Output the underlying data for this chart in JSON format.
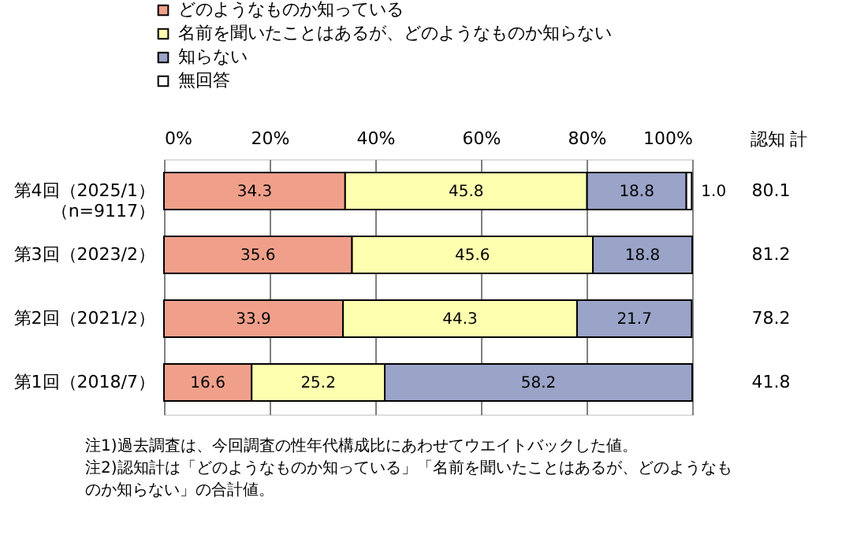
{
  "chart_data": {
    "type": "bar",
    "orientation": "horizontal",
    "stacked": true,
    "categories": [
      "第4回（2025/1）（n=9117）",
      "第3回（2023/2）",
      "第2回（2021/2）",
      "第1回（2018/7）"
    ],
    "series": [
      {
        "name": "どのようなものか知っている",
        "color": "#f0a08a",
        "values": [
          34.3,
          35.6,
          33.9,
          16.6
        ],
        "value_labels": [
          "34.3",
          "35.6",
          "33.9",
          "16.6"
        ]
      },
      {
        "name": "名前を聞いたことはあるが、どのようなものか知らない",
        "color": "#ffffb0",
        "values": [
          45.8,
          45.6,
          44.3,
          25.2
        ],
        "value_labels": [
          "45.8",
          "45.6",
          "44.3",
          "25.2"
        ]
      },
      {
        "name": "知らない",
        "color": "#9aa3c8",
        "values": [
          18.8,
          18.8,
          21.7,
          58.2
        ],
        "value_labels": [
          "18.8",
          "18.8",
          "21.7",
          "58.2"
        ]
      },
      {
        "name": "無回答",
        "color": "#ffffff",
        "values": [
          1.0,
          null,
          null,
          null
        ],
        "value_labels": [
          "1.0",
          null,
          null,
          null
        ]
      }
    ],
    "xlim": [
      0,
      100
    ],
    "xticks": [
      {
        "value": 0,
        "label": "0%"
      },
      {
        "value": 20,
        "label": "20%"
      },
      {
        "value": 40,
        "label": "40%"
      },
      {
        "value": 60,
        "label": "60%"
      },
      {
        "value": 80,
        "label": "80%"
      },
      {
        "value": 100,
        "label": "100%"
      }
    ],
    "grid": "x",
    "legend": "top",
    "annotations": [
      "認知 計",
      "80.1",
      "81.2",
      "78.2",
      "41.8",
      "注1)過去調査は、今回調査の性年代構成比にあわせてウエイトバックした値。",
      "注2)認知計は「どのようなものか知っている」「名前を聞いたことはあるが、どのようなものか知らない」の合計値。"
    ]
  }
}
